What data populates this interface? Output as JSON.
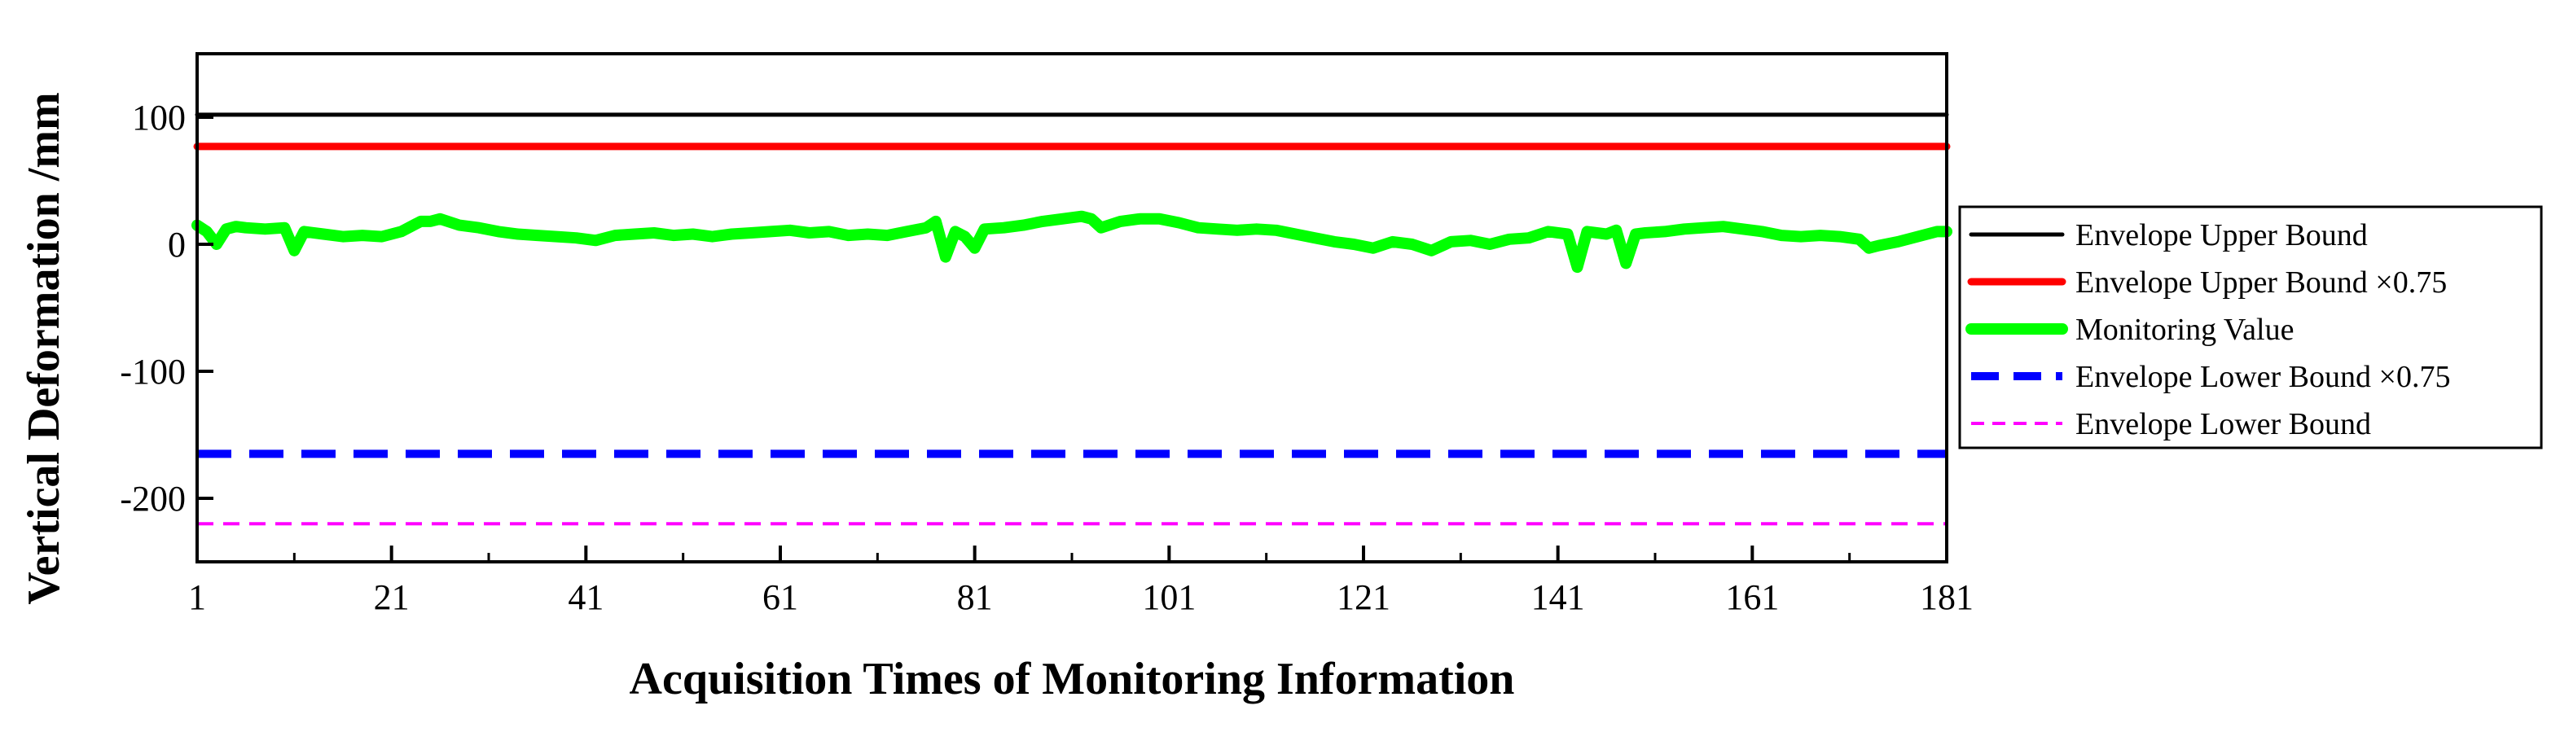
{
  "chart_data": {
    "type": "line",
    "xlabel": "Acquisition Times of Monitoring Information",
    "ylabel": "Vertical Deformation  /mm",
    "xlim": [
      1,
      181
    ],
    "ylim": [
      -250,
      150
    ],
    "xticks": [
      1,
      21,
      41,
      61,
      81,
      101,
      121,
      141,
      161,
      181
    ],
    "yticks": [
      -200,
      -100,
      0,
      100
    ],
    "grid": false,
    "legend_position": "right",
    "series": [
      {
        "name": "Envelope Upper Bound",
        "color": "#000000",
        "style": "solid",
        "x": [
          1,
          181
        ],
        "values": [
          102,
          102
        ]
      },
      {
        "name": "Envelope Upper Bound ×0.75",
        "color": "#ff0000",
        "style": "solid",
        "x": [
          1,
          181
        ],
        "values": [
          77,
          77
        ]
      },
      {
        "name": "Monitoring Value",
        "color": "#00ff00",
        "style": "solid",
        "x": [
          1,
          2,
          3,
          4,
          5,
          6,
          8,
          10,
          11,
          12,
          14,
          16,
          18,
          20,
          22,
          24,
          25,
          26,
          28,
          30,
          32,
          34,
          36,
          38,
          40,
          42,
          44,
          46,
          48,
          50,
          52,
          54,
          56,
          58,
          60,
          62,
          64,
          66,
          68,
          70,
          72,
          74,
          76,
          77,
          78,
          79,
          80,
          81,
          82,
          84,
          86,
          88,
          90,
          92,
          93,
          94,
          96,
          98,
          100,
          102,
          104,
          106,
          108,
          110,
          112,
          114,
          116,
          118,
          120,
          122,
          124,
          126,
          128,
          130,
          132,
          134,
          136,
          138,
          140,
          142,
          143,
          144,
          146,
          147,
          148,
          149,
          150,
          152,
          154,
          156,
          158,
          160,
          162,
          164,
          166,
          168,
          170,
          172,
          173,
          174,
          176,
          178,
          180,
          181
        ],
        "values": [
          15,
          10,
          0,
          12,
          14,
          13,
          12,
          13,
          -5,
          10,
          8,
          6,
          7,
          6,
          10,
          18,
          18,
          20,
          15,
          13,
          10,
          8,
          7,
          6,
          5,
          3,
          7,
          8,
          9,
          7,
          8,
          6,
          8,
          9,
          10,
          11,
          9,
          10,
          7,
          8,
          7,
          10,
          13,
          18,
          -10,
          10,
          6,
          -3,
          12,
          13,
          15,
          18,
          20,
          22,
          20,
          13,
          18,
          20,
          20,
          17,
          13,
          12,
          11,
          12,
          11,
          8,
          5,
          2,
          0,
          -3,
          2,
          0,
          -5,
          2,
          3,
          0,
          4,
          5,
          10,
          8,
          -18,
          10,
          8,
          11,
          -15,
          8,
          9,
          10,
          12,
          13,
          14,
          12,
          10,
          7,
          6,
          7,
          6,
          4,
          -3,
          -1,
          2,
          6,
          10,
          10
        ]
      },
      {
        "name": "Envelope Lower Bound ×0.75",
        "color": "#0000ff",
        "style": "dashed",
        "x": [
          1,
          181
        ],
        "values": [
          -165,
          -165
        ]
      },
      {
        "name": "Envelope Lower Bound",
        "color": "#ff00ff",
        "style": "dashed-thin",
        "x": [
          1,
          181
        ],
        "values": [
          -220,
          -220
        ]
      }
    ]
  }
}
